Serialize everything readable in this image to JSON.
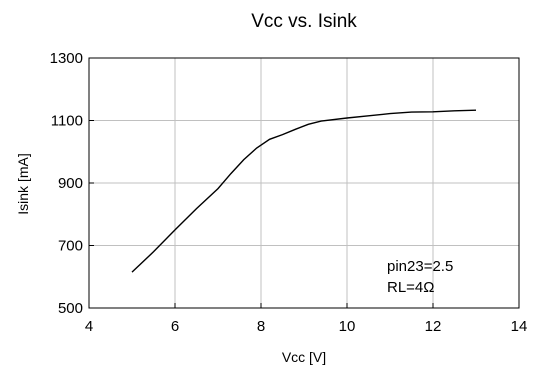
{
  "chart_data": {
    "type": "line",
    "title": "Vcc vs. Isink",
    "xlabel": "Vcc [V]",
    "ylabel": "Isink [mA]",
    "xlim": [
      4,
      14
    ],
    "ylim": [
      500,
      1300
    ],
    "xticks": [
      4,
      6,
      8,
      10,
      12,
      14
    ],
    "yticks": [
      500,
      700,
      900,
      1100,
      1300
    ],
    "grid": true,
    "series": [
      {
        "color": "#000000",
        "x": [
          5.0,
          5.5,
          6.0,
          6.5,
          7.0,
          7.3,
          7.6,
          7.9,
          8.2,
          8.5,
          8.8,
          9.1,
          9.4,
          10.0,
          10.5,
          11.0,
          11.5,
          12.0,
          12.5,
          13.0
        ],
        "y": [
          615,
          680,
          750,
          818,
          882,
          930,
          975,
          1012,
          1040,
          1055,
          1072,
          1088,
          1098,
          1108,
          1115,
          1122,
          1127,
          1128,
          1131,
          1133
        ]
      }
    ],
    "annotations": [
      "pin23=2.5",
      "RL=4Ω"
    ]
  }
}
